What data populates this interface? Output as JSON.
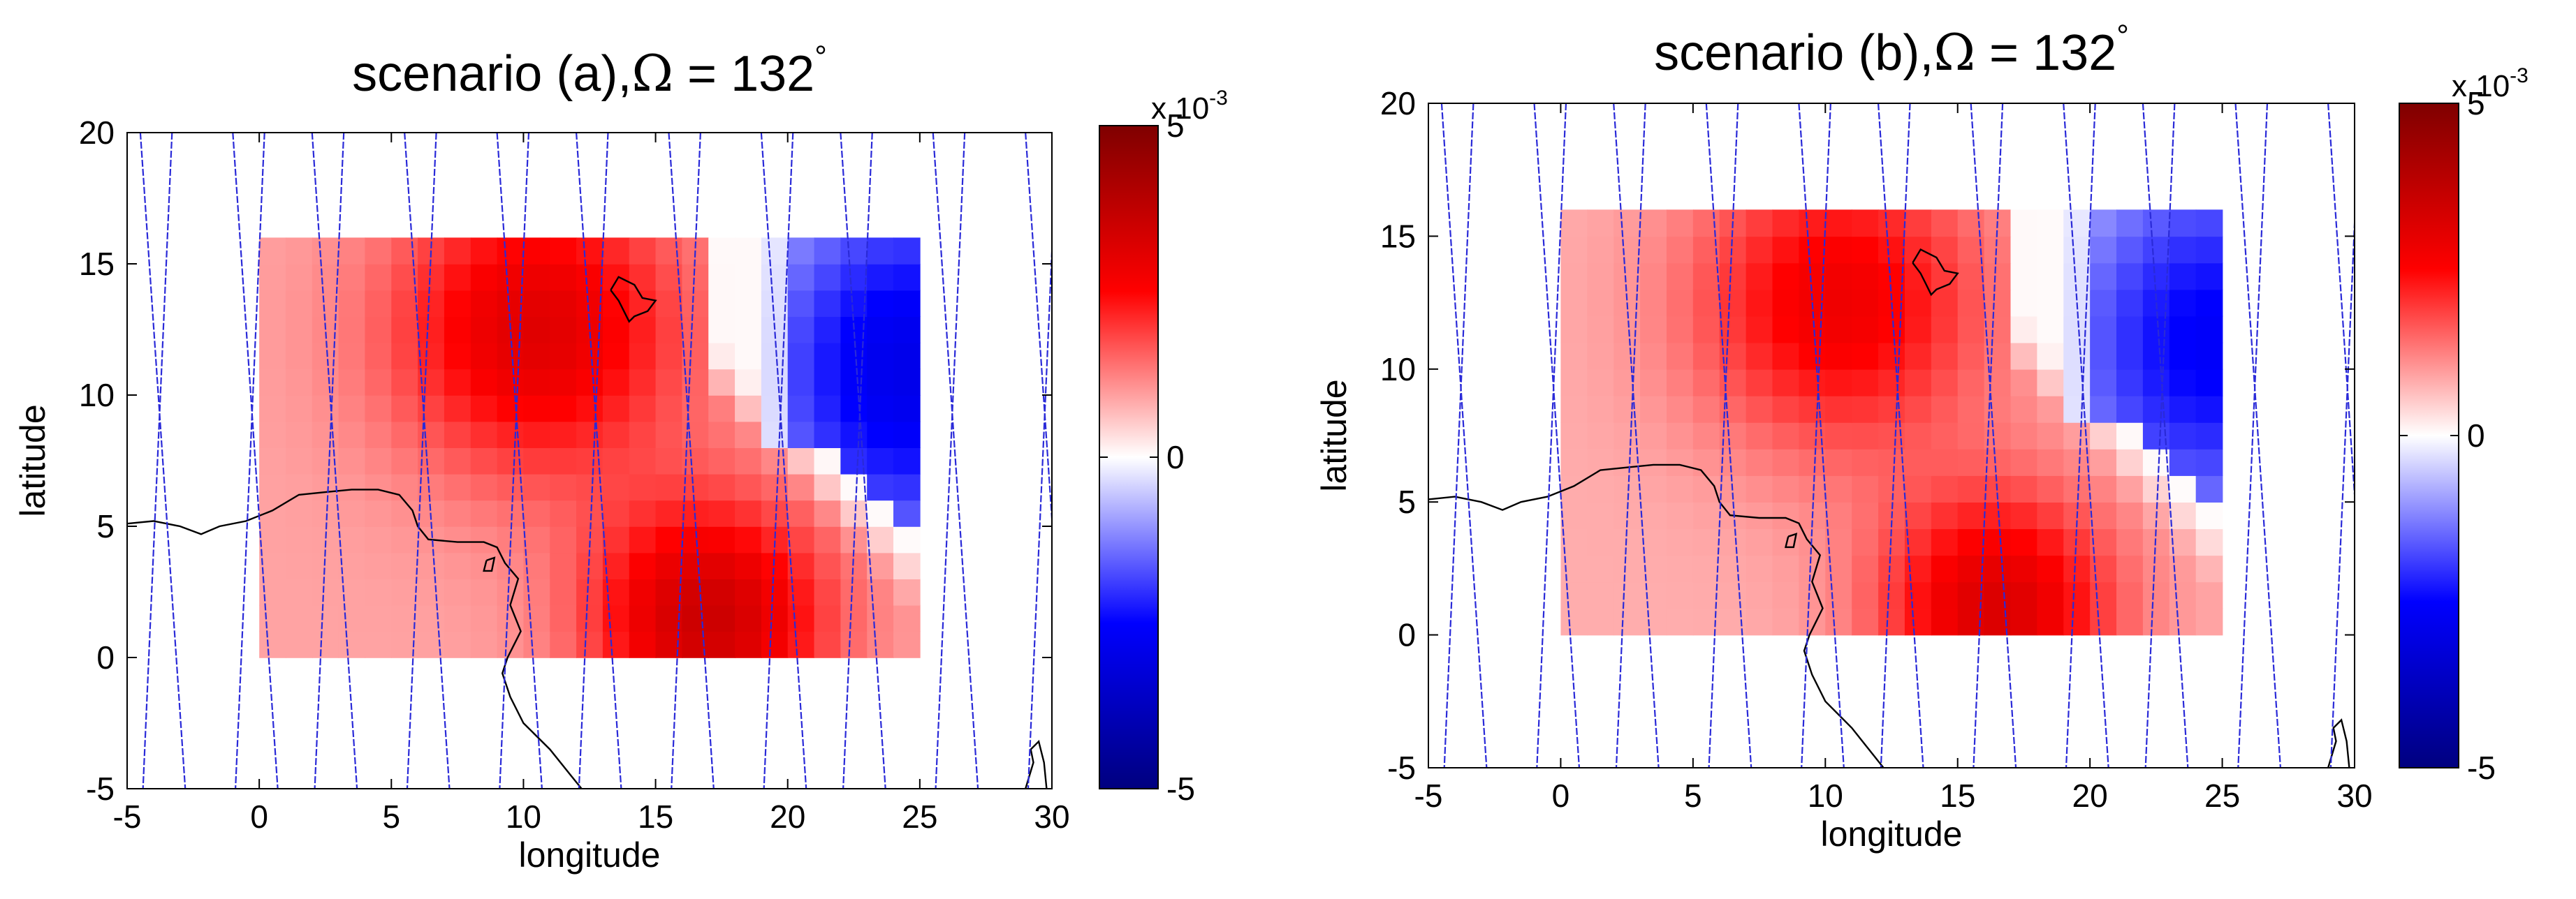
{
  "chart_data": [
    {
      "type": "heatmap",
      "title_prefix": "scenario (a),",
      "title_symbol": "Ω",
      "title_suffix": " = 132",
      "title_degree": "°",
      "xlabel": "longitude",
      "ylabel": "latitude",
      "xlim": [
        -5,
        30
      ],
      "ylim": [
        -5,
        20
      ],
      "xticks": [
        "-5",
        "0",
        "5",
        "10",
        "15",
        "20",
        "25",
        "30"
      ],
      "yticks": [
        "-5",
        "0",
        "5",
        "10",
        "15",
        "20"
      ],
      "grid_x_range": [
        0,
        25
      ],
      "grid_y_range": [
        0,
        16
      ],
      "grid_cols": 25,
      "grid_rows": 16,
      "field_model": {
        "positive_peaks": [
          {
            "lon": 10.5,
            "lat": 12.5,
            "amplitude": 0.0022,
            "radius": 5.5
          },
          {
            "lon": 17.0,
            "lat": 1.5,
            "amplitude": 0.0026,
            "radius": 4.5
          }
        ],
        "negative_peak": {
          "lon": 24.5,
          "lat": 11.0,
          "amplitude": -0.0029
        },
        "background": 0.0009
      },
      "colorbar": {
        "min": -0.005,
        "max": 0.005,
        "tick_labels": [
          "5",
          "0",
          "-5"
        ],
        "multiplier_prefix": "x 10",
        "multiplier_exponent": "-3",
        "colors": [
          "#00007f",
          "#0000ff",
          "#ffffff",
          "#ff0000",
          "#7f0000"
        ]
      },
      "track_color": "#2a2ad8",
      "track_lons_at_top": [
        -4.5,
        -1.0,
        2.0,
        5.5,
        9.0,
        12.0,
        15.5,
        19.0,
        22.0,
        25.5,
        29.0
      ],
      "track_lons_at_bottom": [
        -4.0,
        -0.5,
        2.5,
        6.0,
        9.5,
        12.5,
        16.0,
        19.5,
        22.5,
        26.0,
        29.5
      ]
    },
    {
      "type": "heatmap",
      "title_prefix": "scenario (b),",
      "title_symbol": "Ω",
      "title_suffix": " = 132",
      "title_degree": "°",
      "xlabel": "longitude",
      "ylabel": "latitude",
      "xlim": [
        -5,
        30
      ],
      "ylim": [
        -5,
        20
      ],
      "xticks": [
        "-5",
        "0",
        "5",
        "10",
        "15",
        "20",
        "25",
        "30"
      ],
      "yticks": [
        "-5",
        "0",
        "5",
        "10",
        "15",
        "20"
      ],
      "grid_x_range": [
        0,
        25
      ],
      "grid_y_range": [
        0,
        16
      ],
      "grid_cols": 25,
      "grid_rows": 16,
      "field_model": {
        "positive_peaks": [
          {
            "lon": 10.5,
            "lat": 12.5,
            "amplitude": 0.002,
            "radius": 5.5
          },
          {
            "lon": 16.5,
            "lat": 1.0,
            "amplitude": 0.0024,
            "radius": 4.5
          }
        ],
        "negative_peak": {
          "lon": 24.5,
          "lat": 11.0,
          "amplitude": -0.0026
        },
        "background": 0.0008
      },
      "colorbar": {
        "min": -0.005,
        "max": 0.005,
        "tick_labels": [
          "5",
          "0",
          "-5"
        ],
        "multiplier_prefix": "x 10",
        "multiplier_exponent": "-3",
        "colors": [
          "#00007f",
          "#0000ff",
          "#ffffff",
          "#ff0000",
          "#7f0000"
        ]
      },
      "track_color": "#2a2ad8",
      "track_lons_at_top": [
        -4.5,
        -1.0,
        2.0,
        5.5,
        9.0,
        12.0,
        15.5,
        19.0,
        22.0,
        25.5,
        29.0
      ],
      "track_lons_at_bottom": [
        -4.0,
        -0.5,
        2.5,
        6.0,
        9.5,
        12.5,
        16.0,
        19.5,
        22.5,
        26.0,
        29.5
      ]
    }
  ],
  "coastline": [
    [
      -5,
      5.1
    ],
    [
      -4,
      5.2
    ],
    [
      -3,
      5.0
    ],
    [
      -2.2,
      4.7
    ],
    [
      -1.5,
      5.0
    ],
    [
      -0.5,
      5.2
    ],
    [
      0.5,
      5.6
    ],
    [
      1.5,
      6.2
    ],
    [
      2.5,
      6.3
    ],
    [
      3.5,
      6.4
    ],
    [
      4.5,
      6.4
    ],
    [
      5.3,
      6.2
    ],
    [
      5.8,
      5.6
    ],
    [
      6.0,
      5.0
    ],
    [
      6.4,
      4.5
    ],
    [
      7.5,
      4.4
    ],
    [
      8.5,
      4.4
    ],
    [
      9.0,
      4.2
    ],
    [
      9.3,
      3.6
    ],
    [
      9.8,
      3.0
    ],
    [
      9.5,
      2.0
    ],
    [
      9.9,
      1.0
    ],
    [
      9.4,
      0.0
    ],
    [
      9.2,
      -0.6
    ],
    [
      9.5,
      -1.5
    ],
    [
      10.0,
      -2.5
    ],
    [
      11.0,
      -3.5
    ],
    [
      11.8,
      -4.5
    ],
    [
      12.2,
      -5.0
    ]
  ],
  "island": [
    [
      8.6,
      3.7
    ],
    [
      8.9,
      3.8
    ],
    [
      8.8,
      3.3
    ],
    [
      8.5,
      3.3
    ],
    [
      8.6,
      3.7
    ]
  ],
  "lake_chad": [
    [
      13.3,
      14.0
    ],
    [
      13.6,
      14.5
    ],
    [
      14.2,
      14.2
    ],
    [
      14.5,
      13.7
    ],
    [
      15.0,
      13.6
    ],
    [
      14.7,
      13.2
    ],
    [
      14.2,
      13.0
    ],
    [
      14.0,
      12.8
    ],
    [
      13.8,
      13.2
    ],
    [
      13.6,
      13.6
    ],
    [
      13.3,
      14.0
    ]
  ],
  "coast_se": [
    [
      29.0,
      -5.0
    ],
    [
      29.3,
      -4.0
    ],
    [
      29.2,
      -3.5
    ],
    [
      29.5,
      -3.2
    ],
    [
      29.7,
      -4.0
    ],
    [
      29.8,
      -5.0
    ]
  ]
}
